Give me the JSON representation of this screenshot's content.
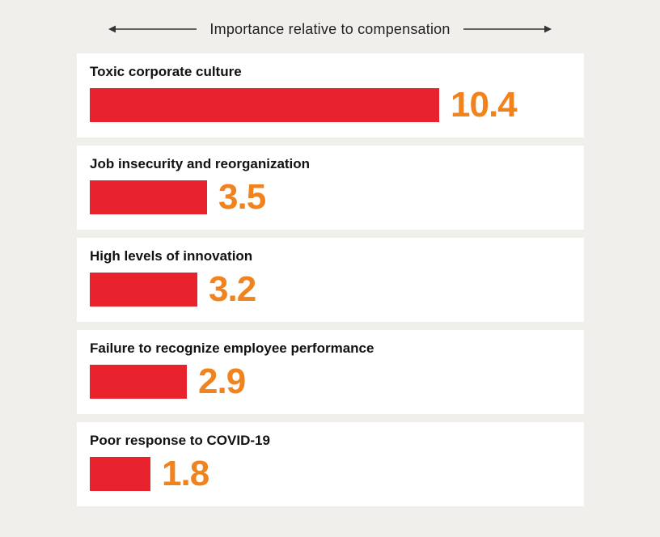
{
  "header": {
    "title": "Importance relative to compensation"
  },
  "colors": {
    "background": "#f0efec",
    "card": "#ffffff",
    "bar": "#e8232e",
    "value_text": "#f0831d",
    "label_text": "#111111",
    "arrow": "#333333"
  },
  "chart_data": {
    "type": "bar",
    "orientation": "horizontal",
    "title": "Importance relative to compensation",
    "legend": false,
    "grid": false,
    "categories": [
      "Toxic corporate culture",
      "Job insecurity and reorganization",
      "High levels of innovation",
      "Failure to recognize employee performance",
      "Poor response to COVID-19"
    ],
    "values": [
      10.4,
      3.5,
      3.2,
      2.9,
      1.8
    ],
    "xlabel": "Importance relative to compensation",
    "ylabel": "",
    "xlim": [
      0,
      10.4
    ],
    "rows": [
      {
        "label": "Toxic corporate culture",
        "value": 10.4,
        "value_label": "10.4"
      },
      {
        "label": "Job insecurity and reorganization",
        "value": 3.5,
        "value_label": "3.5"
      },
      {
        "label": "High levels of innovation",
        "value": 3.2,
        "value_label": "3.2"
      },
      {
        "label": "Failure to recognize employee performance",
        "value": 2.9,
        "value_label": "2.9"
      },
      {
        "label": "Poor response to COVID-19",
        "value": 1.8,
        "value_label": "1.8"
      }
    ]
  }
}
